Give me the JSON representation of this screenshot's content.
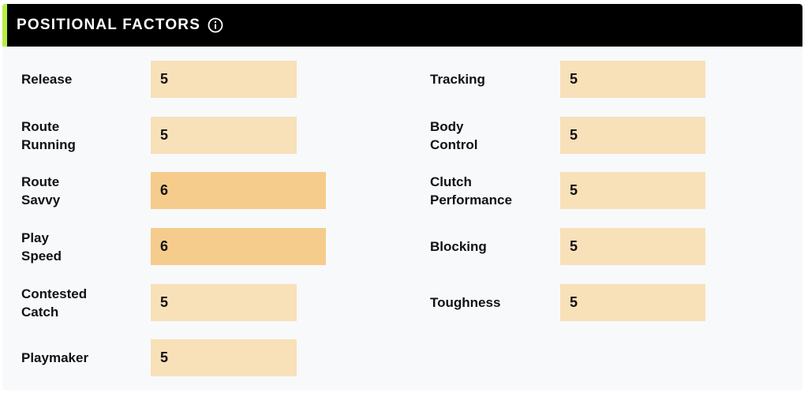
{
  "section": {
    "title": "POSITIONAL FACTORS",
    "accent_color": "#b8ec46",
    "info_icon": "info-circle-icon"
  },
  "colors": {
    "bar_normal": "#f8e0b9",
    "bar_high": "#f5cc8c"
  },
  "left_factors": [
    {
      "label": "Release",
      "value": "5"
    },
    {
      "label": "Route Running",
      "value": "5"
    },
    {
      "label": "Route Savvy",
      "value": "6"
    },
    {
      "label": "Play Speed",
      "value": "6"
    },
    {
      "label": "Contested Catch",
      "value": "5"
    },
    {
      "label": "Playmaker",
      "value": "5"
    }
  ],
  "right_factors": [
    {
      "label": "Tracking",
      "value": "5"
    },
    {
      "label": "Body Control",
      "value": "5"
    },
    {
      "label": "Clutch Performance",
      "value": "5"
    },
    {
      "label": "Blocking",
      "value": "5"
    },
    {
      "label": "Toughness",
      "value": "5"
    }
  ]
}
